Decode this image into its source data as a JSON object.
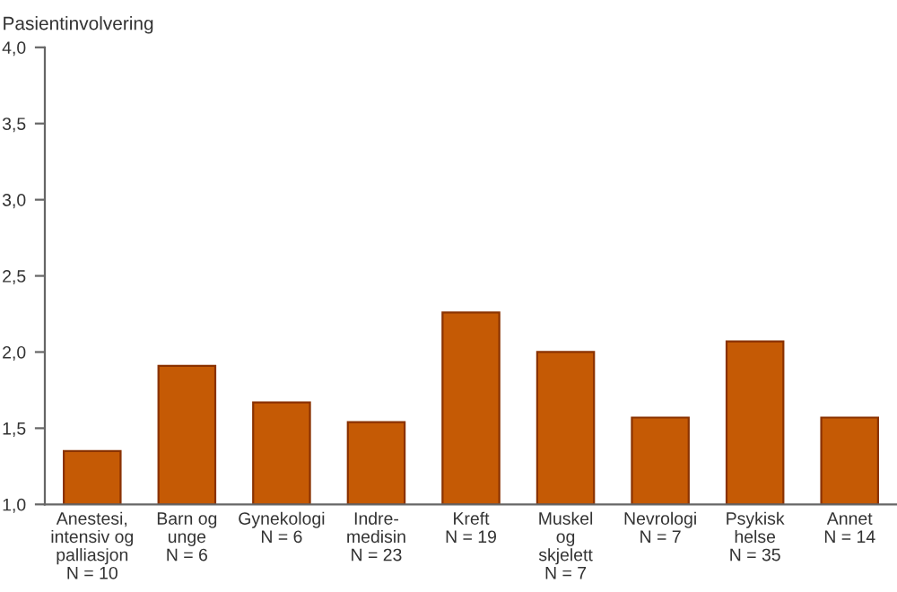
{
  "chart_data": {
    "type": "bar",
    "ylabel": "Pasientinvolvering",
    "categories": [
      "Anestesi,\nintensiv og\npalliasjon\nN = 10",
      "Barn og\nunge\nN = 6",
      "Gynekologi\nN = 6",
      "Indre-\nmedisin\nN = 23",
      "Kreft\nN = 19",
      "Muskel\nog\nskjelett\nN = 7",
      "Nevrologi\nN = 7",
      "Psykisk\nhelse\nN = 35",
      "Annet\nN = 14"
    ],
    "values": [
      1.35,
      1.91,
      1.67,
      1.54,
      2.26,
      2.0,
      1.57,
      2.07,
      1.57
    ],
    "color": "#c55a05",
    "ylim": [
      1.0,
      4.0
    ],
    "yticks": [
      {
        "value": 1.0,
        "label": "1,0"
      },
      {
        "value": 1.5,
        "label": "1,5"
      },
      {
        "value": 2.0,
        "label": "2,0"
      },
      {
        "value": 2.5,
        "label": "2,5"
      },
      {
        "value": 3.0,
        "label": "3,0"
      },
      {
        "value": 3.5,
        "label": "3,5"
      },
      {
        "value": 4.0,
        "label": "4,0"
      }
    ],
    "grid": false
  }
}
